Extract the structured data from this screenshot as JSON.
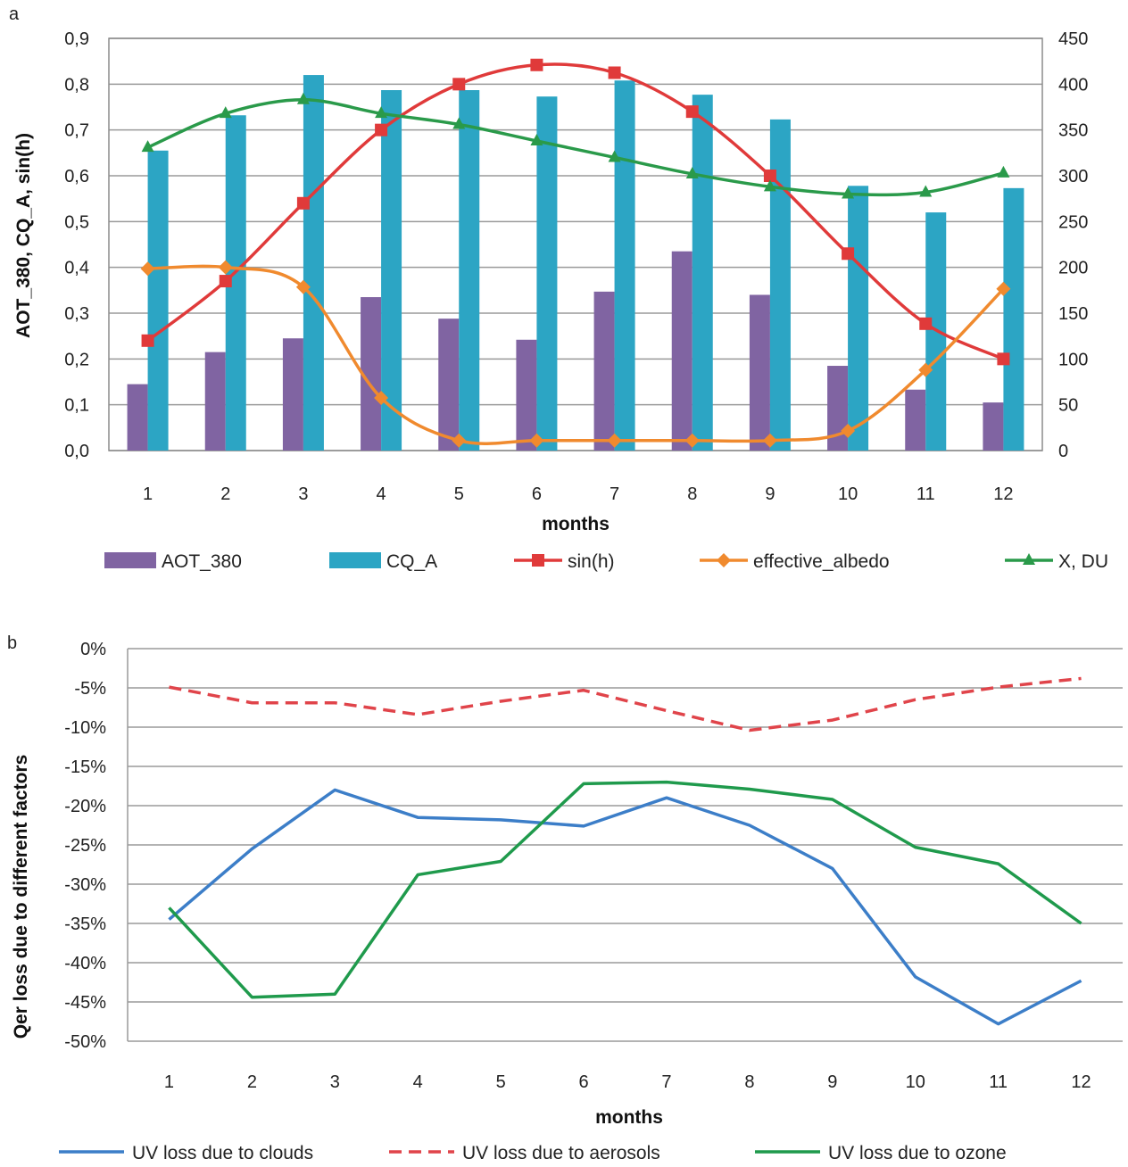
{
  "panel_labels": [
    "a",
    "b"
  ],
  "chart_data": [
    {
      "type": "bar",
      "panel": "a",
      "xlabel": "months",
      "ylabel": "AOT_380, CQ_A, sin(h)",
      "y2label": "",
      "categories": [
        "1",
        "2",
        "3",
        "4",
        "5",
        "6",
        "7",
        "8",
        "9",
        "10",
        "11",
        "12"
      ],
      "ylim": [
        0,
        0.9
      ],
      "y2lim": [
        0,
        450
      ],
      "yticks": [
        "0,0",
        "0,1",
        "0,2",
        "0,3",
        "0,4",
        "0,5",
        "0,6",
        "0,7",
        "0,8",
        "0,9"
      ],
      "y2ticks": [
        "0",
        "50",
        "100",
        "150",
        "200",
        "250",
        "300",
        "350",
        "400",
        "450"
      ],
      "grid": true,
      "legend_position": "bottom",
      "series": [
        {
          "name": "AOT_380",
          "kind": "bar",
          "axis": "left",
          "color": "#8064A2",
          "values": [
            0.145,
            0.215,
            0.245,
            0.335,
            0.288,
            0.242,
            0.347,
            0.435,
            0.34,
            0.185,
            0.133,
            0.105
          ]
        },
        {
          "name": "CQ_A",
          "kind": "bar",
          "axis": "left",
          "color": "#2CA5C4",
          "values": [
            0.655,
            0.732,
            0.82,
            0.787,
            0.787,
            0.773,
            0.808,
            0.777,
            0.723,
            0.578,
            0.52,
            0.573
          ]
        },
        {
          "name": "sin(h)",
          "kind": "line",
          "axis": "left",
          "color": "#E03A3A",
          "marker": "square",
          "values": [
            0.24,
            0.37,
            0.54,
            0.7,
            0.8,
            0.842,
            0.825,
            0.74,
            0.6,
            0.43,
            0.277,
            0.2
          ]
        },
        {
          "name": "effective_albedo",
          "kind": "line",
          "axis": "left",
          "color": "#F08A2E",
          "marker": "diamond",
          "values": [
            0.397,
            0.4,
            0.357,
            0.115,
            0.022,
            0.022,
            0.022,
            0.022,
            0.022,
            0.043,
            0.176,
            0.353
          ]
        },
        {
          "name": "X, DU",
          "kind": "line",
          "axis": "right",
          "color": "#2A9A4A",
          "marker": "triangle",
          "values": [
            331,
            368,
            383,
            368,
            356,
            338,
            320,
            302,
            288,
            280,
            282,
            303
          ]
        }
      ]
    },
    {
      "type": "line",
      "panel": "b",
      "xlabel": "months",
      "ylabel": "Qer loss due to different factors",
      "categories": [
        "1",
        "2",
        "3",
        "4",
        "5",
        "6",
        "7",
        "8",
        "9",
        "10",
        "11",
        "12"
      ],
      "ylim": [
        -50,
        0
      ],
      "yticks": [
        "0%",
        "-5%",
        "-10%",
        "-15%",
        "-20%",
        "-25%",
        "-30%",
        "-35%",
        "-40%",
        "-45%",
        "-50%"
      ],
      "grid": true,
      "legend_position": "bottom",
      "series": [
        {
          "name": "UV loss due to clouds",
          "color": "#3C7EC8",
          "dash": false,
          "values": [
            -34.5,
            -25.5,
            -18.0,
            -21.5,
            -21.8,
            -22.6,
            -19.0,
            -22.5,
            -28.0,
            -41.8,
            -47.8,
            -42.3
          ]
        },
        {
          "name": "UV loss due to aerosols",
          "color": "#E0444A",
          "dash": true,
          "values": [
            -4.9,
            -6.9,
            -6.9,
            -8.4,
            -6.7,
            -5.3,
            -7.9,
            -10.4,
            -9.1,
            -6.5,
            -4.9,
            -3.8
          ]
        },
        {
          "name": "UV loss due  to ozone",
          "color": "#1F9A4C",
          "dash": false,
          "values": [
            -33.0,
            -44.4,
            -44.0,
            -28.8,
            -27.1,
            -17.2,
            -17.0,
            -17.9,
            -19.2,
            -25.3,
            -27.4,
            -35.0
          ]
        }
      ]
    }
  ]
}
